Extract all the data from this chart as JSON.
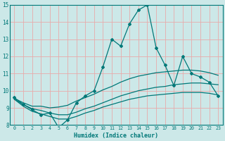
{
  "xlabel": "Humidex (Indice chaleur)",
  "xlim": [
    -0.5,
    23.5
  ],
  "ylim": [
    8,
    15
  ],
  "yticks": [
    8,
    9,
    10,
    11,
    12,
    13,
    14,
    15
  ],
  "xticks": [
    0,
    1,
    2,
    3,
    4,
    5,
    6,
    7,
    8,
    9,
    10,
    11,
    12,
    13,
    14,
    15,
    16,
    17,
    18,
    19,
    20,
    21,
    22,
    23
  ],
  "background_color": "#cce8e8",
  "grid_color": "#e8aaaa",
  "line_color": "#007878",
  "lines": [
    {
      "x": [
        0,
        1,
        2,
        3,
        4,
        5,
        6,
        7,
        8,
        9,
        10,
        11,
        12,
        13,
        14,
        15,
        16,
        17,
        18,
        19,
        20,
        21,
        22,
        23
      ],
      "y": [
        9.6,
        9.2,
        8.9,
        8.6,
        8.7,
        7.85,
        8.3,
        9.3,
        9.7,
        10.0,
        11.4,
        13.0,
        12.6,
        13.9,
        14.7,
        15.0,
        12.5,
        11.5,
        10.3,
        12.0,
        11.0,
        10.8,
        10.5,
        9.7
      ],
      "marker": "D",
      "markersize": 2.0,
      "linewidth": 0.9,
      "smooth": false
    },
    {
      "x": [
        0,
        1,
        2,
        3,
        4,
        5,
        6,
        7,
        8,
        9,
        10,
        11,
        12,
        13,
        14,
        15,
        16,
        17,
        18,
        19,
        20,
        21,
        22,
        23
      ],
      "y": [
        9.55,
        9.3,
        9.1,
        9.1,
        9.0,
        9.05,
        9.15,
        9.4,
        9.6,
        9.8,
        10.05,
        10.25,
        10.5,
        10.7,
        10.85,
        10.95,
        11.05,
        11.1,
        11.15,
        11.2,
        11.2,
        11.15,
        11.05,
        10.9
      ],
      "marker": null,
      "markersize": 0,
      "linewidth": 0.9,
      "smooth": true
    },
    {
      "x": [
        0,
        1,
        2,
        3,
        4,
        5,
        6,
        7,
        8,
        9,
        10,
        11,
        12,
        13,
        14,
        15,
        16,
        17,
        18,
        19,
        20,
        21,
        22,
        23
      ],
      "y": [
        9.5,
        9.2,
        8.95,
        8.85,
        8.7,
        8.6,
        8.6,
        8.75,
        8.95,
        9.1,
        9.3,
        9.5,
        9.7,
        9.85,
        10.0,
        10.1,
        10.2,
        10.25,
        10.35,
        10.4,
        10.45,
        10.45,
        10.4,
        10.35
      ],
      "marker": null,
      "markersize": 0,
      "linewidth": 0.9,
      "smooth": true
    },
    {
      "x": [
        0,
        1,
        2,
        3,
        4,
        5,
        6,
        7,
        8,
        9,
        10,
        11,
        12,
        13,
        14,
        15,
        16,
        17,
        18,
        19,
        20,
        21,
        22,
        23
      ],
      "y": [
        9.5,
        9.1,
        8.8,
        8.65,
        8.5,
        8.35,
        8.35,
        8.5,
        8.7,
        8.85,
        9.05,
        9.2,
        9.35,
        9.5,
        9.6,
        9.7,
        9.75,
        9.8,
        9.85,
        9.9,
        9.9,
        9.9,
        9.85,
        9.75
      ],
      "marker": null,
      "markersize": 0,
      "linewidth": 0.9,
      "smooth": true
    }
  ]
}
